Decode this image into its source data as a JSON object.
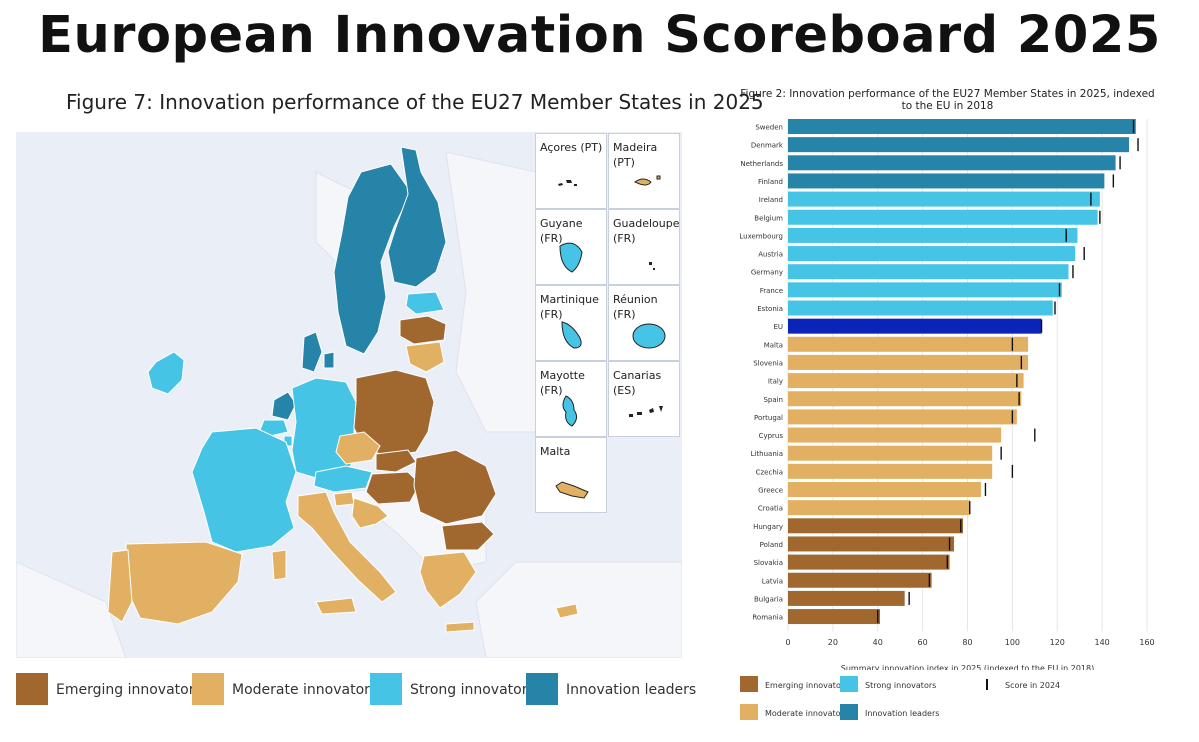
{
  "header": {
    "title": "European Innovation Scoreboard 2025"
  },
  "map": {
    "title": "Figure 7: Innovation performance of the EU27 Member States in 2025",
    "insets": [
      {
        "label": "Açores (PT)",
        "category": "none"
      },
      {
        "label": "Madeira (PT)",
        "category": "moderate"
      },
      {
        "label": "Guyane (FR)",
        "category": "strong"
      },
      {
        "label": "Guadeloupe (FR)",
        "category": "none"
      },
      {
        "label": "Martinique (FR)",
        "category": "strong"
      },
      {
        "label": "Réunion (FR)",
        "category": "strong"
      },
      {
        "label": "Mayotte (FR)",
        "category": "strong"
      },
      {
        "label": "Canarias (ES)",
        "category": "none"
      },
      {
        "label": "Malta",
        "category": "moderate"
      }
    ],
    "legend": [
      {
        "key": "emerging",
        "label": "Emerging innovators",
        "color": "#a0682e"
      },
      {
        "key": "moderate",
        "label": "Moderate innovators",
        "color": "#e2b062"
      },
      {
        "key": "strong",
        "label": "Strong innovators",
        "color": "#45c4e6"
      },
      {
        "key": "leaders",
        "label": "Innovation leaders",
        "color": "#2684a8"
      }
    ]
  },
  "chart_data": {
    "type": "bar",
    "orientation": "horizontal",
    "title": "Figure 2: Innovation performance of the EU27 Member States in 2025, indexed to the EU in 2018",
    "xlabel": "Summary innovation index in 2025 (indexed to the EU in 2018)",
    "xlim": [
      0,
      160
    ],
    "xticks": [
      0,
      20,
      40,
      60,
      80,
      100,
      120,
      140,
      160
    ],
    "grid": true,
    "categories": [
      "Sweden",
      "Denmark",
      "Netherlands",
      "Finland",
      "Ireland",
      "Belgium",
      "Luxembourg",
      "Austria",
      "Germany",
      "France",
      "Estonia",
      "EU",
      "Malta",
      "Slovenia",
      "Italy",
      "Spain",
      "Portugal",
      "Cyprus",
      "Lithuania",
      "Czechia",
      "Greece",
      "Croatia",
      "Hungary",
      "Poland",
      "Slovakia",
      "Latvia",
      "Bulgaria",
      "Romania"
    ],
    "series": [
      {
        "name": "Score in 2025",
        "values": [
          155,
          152,
          146,
          141,
          139,
          138,
          129,
          128,
          125,
          122,
          118,
          113,
          107,
          107,
          105,
          104,
          102,
          95,
          91,
          91,
          86,
          81,
          78,
          74,
          72,
          64,
          52,
          41
        ]
      },
      {
        "name": "Score in 2024",
        "values": [
          154,
          156,
          148,
          145,
          135,
          139,
          124,
          132,
          127,
          121,
          119,
          113,
          100,
          104,
          102,
          103,
          100,
          110,
          95,
          100,
          88,
          81,
          77,
          72,
          71,
          63,
          54,
          40
        ]
      }
    ],
    "groups": [
      "leaders",
      "leaders",
      "leaders",
      "leaders",
      "strong",
      "strong",
      "strong",
      "strong",
      "strong",
      "strong",
      "strong",
      "eu",
      "moderate",
      "moderate",
      "moderate",
      "moderate",
      "moderate",
      "moderate",
      "moderate",
      "moderate",
      "moderate",
      "moderate",
      "emerging",
      "emerging",
      "emerging",
      "emerging",
      "emerging",
      "emerging"
    ],
    "group_colors": {
      "leaders": "#2684a8",
      "strong": "#45c4e6",
      "moderate": "#e2b062",
      "emerging": "#a0682e",
      "eu": "#0a24b8"
    },
    "legend": [
      {
        "key": "emerging",
        "label": "Emerging innovators",
        "color": "#a0682e"
      },
      {
        "key": "strong",
        "label": "Strong innovators",
        "color": "#45c4e6"
      },
      {
        "key": "score2024",
        "label": "Score in 2024",
        "color": "#111111"
      },
      {
        "key": "moderate",
        "label": "Moderate innovators",
        "color": "#e2b062"
      },
      {
        "key": "leaders",
        "label": "Innovation leaders",
        "color": "#2684a8"
      }
    ]
  }
}
